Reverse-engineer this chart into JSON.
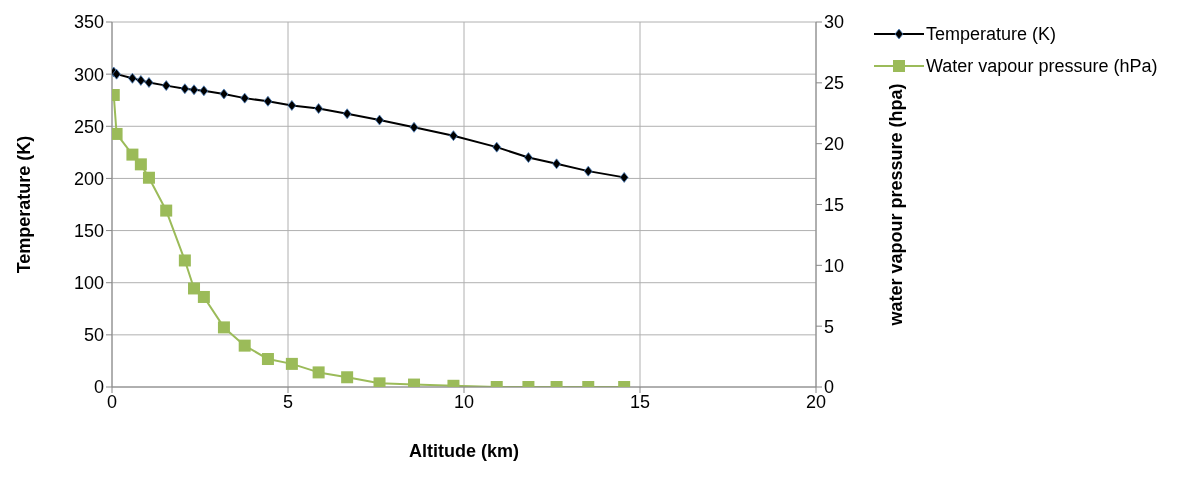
{
  "chart_data": {
    "type": "line",
    "xlabel": "Altitude (km)",
    "ylabel": "Temperature (K)",
    "y2label": "water vapour pressure (hpa)",
    "x": [
      0.05,
      0.13,
      0.58,
      0.82,
      1.05,
      1.54,
      2.07,
      2.33,
      2.61,
      3.18,
      3.77,
      4.43,
      5.11,
      5.87,
      6.68,
      7.6,
      8.58,
      9.7,
      10.93,
      11.83,
      12.63,
      13.53,
      14.55
    ],
    "series": [
      {
        "name": "Temperature (K)",
        "color": "#000000",
        "marker": "diamond",
        "values": [
          302,
          300,
          296,
          294,
          292,
          289,
          286,
          285,
          284,
          281,
          277,
          274,
          270,
          267,
          262,
          256,
          249,
          241,
          230,
          220,
          214,
          207,
          201
        ]
      },
      {
        "name": "Water vapour pressure (hPa)",
        "color": "#9bbb59",
        "marker": "square",
        "axis": "y2",
        "values": [
          24,
          20.8,
          19.1,
          18.3,
          17.2,
          14.5,
          10.4,
          8.1,
          7.4,
          4.9,
          3.4,
          2.3,
          1.9,
          1.2,
          0.8,
          0.3,
          0.2,
          0.1,
          0,
          0,
          0,
          0,
          0
        ]
      }
    ],
    "xlim": [
      0,
      20
    ],
    "xticks": [
      0,
      5,
      10,
      15,
      20
    ],
    "ylim": [
      0,
      350
    ],
    "yticks": [
      0,
      50,
      100,
      150,
      200,
      250,
      300,
      350
    ],
    "y2lim": [
      0,
      30
    ],
    "y2ticks": [
      0,
      5,
      10,
      15,
      20,
      25,
      30
    ],
    "grid": true,
    "legend": "top right"
  }
}
